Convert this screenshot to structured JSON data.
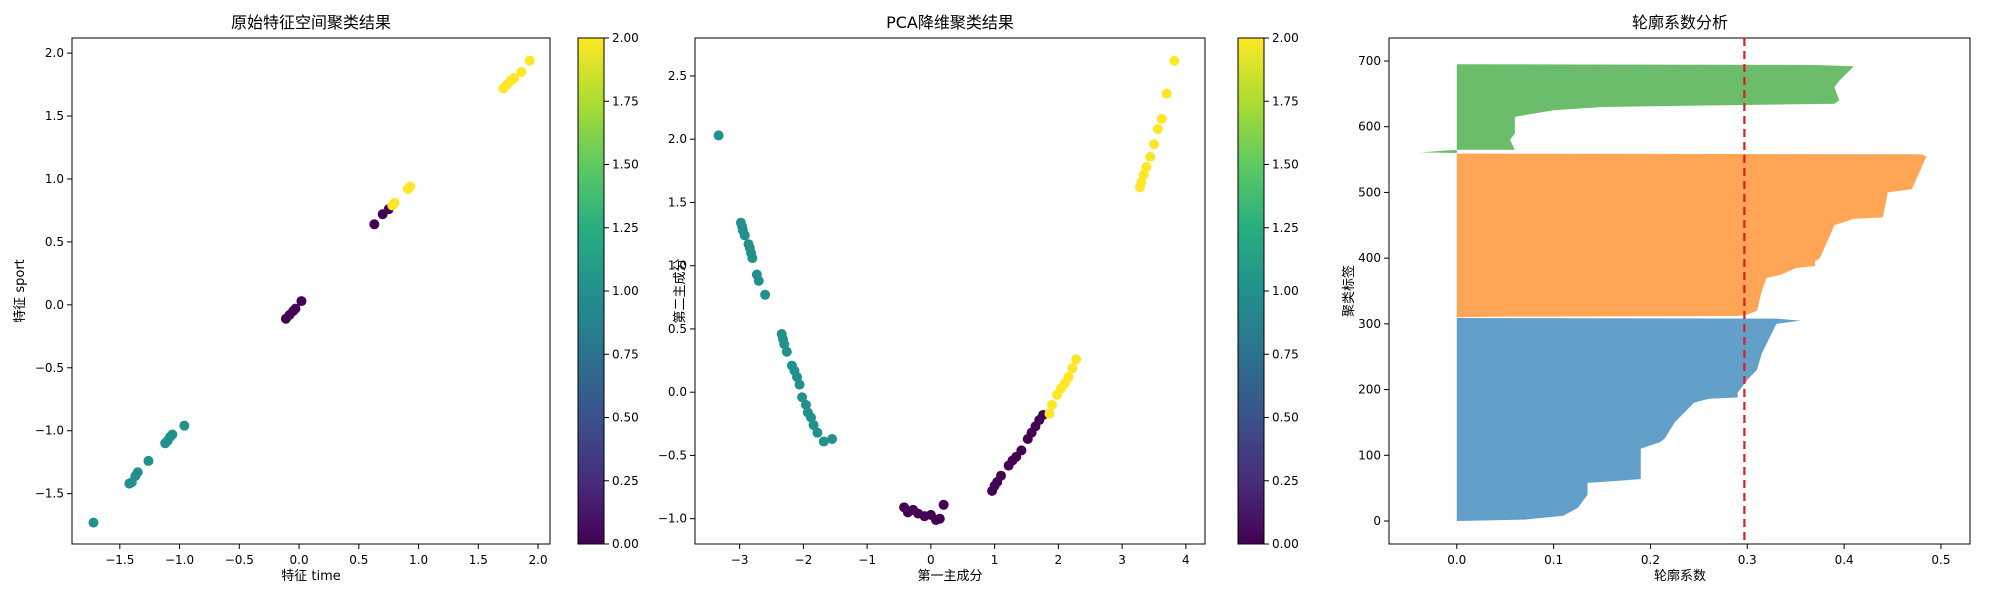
{
  "chart_data": [
    {
      "type": "scatter",
      "title": "原始特征空间聚类结果",
      "xlabel": "特征 time",
      "ylabel": "特征 sport",
      "xlim": [
        -1.9,
        2.1
      ],
      "ylim": [
        -1.9,
        2.12
      ],
      "x_ticks": [
        -1.5,
        -1.0,
        -0.5,
        0.0,
        0.5,
        1.0,
        1.5,
        2.0
      ],
      "x_tick_labels": [
        "−1.5",
        "−1.0",
        "−0.5",
        "0.0",
        "0.5",
        "1.0",
        "1.5",
        "2.0"
      ],
      "y_ticks": [
        -1.5,
        -1.0,
        -0.5,
        0.0,
        0.5,
        1.0,
        1.5,
        2.0
      ],
      "y_tick_labels": [
        "−1.5",
        "−1.0",
        "−0.5",
        "0.0",
        "0.5",
        "1.0",
        "1.5",
        "2.0"
      ],
      "colormap": "viridis",
      "color_value_range": [
        0,
        2
      ],
      "grid": false,
      "points": [
        {
          "x": -1.72,
          "y": -1.73,
          "c": 1
        },
        {
          "x": -1.42,
          "y": -1.42,
          "c": 1
        },
        {
          "x": -1.4,
          "y": -1.41,
          "c": 1
        },
        {
          "x": -1.37,
          "y": -1.36,
          "c": 1
        },
        {
          "x": -1.35,
          "y": -1.33,
          "c": 1
        },
        {
          "x": -1.26,
          "y": -1.24,
          "c": 1
        },
        {
          "x": -1.12,
          "y": -1.1,
          "c": 1
        },
        {
          "x": -1.1,
          "y": -1.08,
          "c": 1
        },
        {
          "x": -1.08,
          "y": -1.05,
          "c": 1
        },
        {
          "x": -1.06,
          "y": -1.03,
          "c": 1
        },
        {
          "x": -0.96,
          "y": -0.96,
          "c": 1
        },
        {
          "x": -0.11,
          "y": -0.11,
          "c": 0
        },
        {
          "x": -0.08,
          "y": -0.08,
          "c": 0
        },
        {
          "x": -0.05,
          "y": -0.05,
          "c": 0
        },
        {
          "x": -0.03,
          "y": -0.03,
          "c": 0
        },
        {
          "x": 0.02,
          "y": 0.03,
          "c": 0
        },
        {
          "x": 0.63,
          "y": 0.64,
          "c": 0
        },
        {
          "x": 0.7,
          "y": 0.72,
          "c": 0
        },
        {
          "x": 0.75,
          "y": 0.76,
          "c": 0
        },
        {
          "x": 0.78,
          "y": 0.79,
          "c": 2
        },
        {
          "x": 0.8,
          "y": 0.81,
          "c": 2
        },
        {
          "x": 0.91,
          "y": 0.92,
          "c": 2
        },
        {
          "x": 0.93,
          "y": 0.94,
          "c": 2
        },
        {
          "x": 1.71,
          "y": 1.72,
          "c": 2
        },
        {
          "x": 1.74,
          "y": 1.75,
          "c": 2
        },
        {
          "x": 1.77,
          "y": 1.78,
          "c": 2
        },
        {
          "x": 1.8,
          "y": 1.8,
          "c": 2
        },
        {
          "x": 1.86,
          "y": 1.85,
          "c": 2
        },
        {
          "x": 1.93,
          "y": 1.94,
          "c": 2
        }
      ],
      "colorbar_ticks": [
        "0.00",
        "0.25",
        "0.50",
        "0.75",
        "1.00",
        "1.25",
        "1.50",
        "1.75",
        "2.00"
      ]
    },
    {
      "type": "scatter",
      "title": "PCA降维聚类结果",
      "xlabel": "第一主成分",
      "ylabel": "第二主成分",
      "xlim": [
        -3.7,
        4.3
      ],
      "ylim": [
        -1.2,
        2.8
      ],
      "x_ticks": [
        -3,
        -2,
        -1,
        0,
        1,
        2,
        3,
        4
      ],
      "x_tick_labels": [
        "−3",
        "−2",
        "−1",
        "0",
        "1",
        "2",
        "3",
        "4"
      ],
      "y_ticks": [
        -1.0,
        -0.5,
        0.0,
        0.5,
        1.0,
        1.5,
        2.0,
        2.5
      ],
      "y_tick_labels": [
        "−1.0",
        "−0.5",
        "0.0",
        "0.5",
        "1.0",
        "1.5",
        "2.0",
        "2.5"
      ],
      "colormap": "viridis",
      "color_value_range": [
        0,
        2
      ],
      "grid": false,
      "points": [
        {
          "x": -3.33,
          "y": 2.03,
          "c": 1
        },
        {
          "x": -2.98,
          "y": 1.34,
          "c": 1
        },
        {
          "x": -2.96,
          "y": 1.31,
          "c": 1
        },
        {
          "x": -2.95,
          "y": 1.28,
          "c": 1
        },
        {
          "x": -2.92,
          "y": 1.24,
          "c": 1
        },
        {
          "x": -2.86,
          "y": 1.17,
          "c": 1
        },
        {
          "x": -2.84,
          "y": 1.14,
          "c": 1
        },
        {
          "x": -2.82,
          "y": 1.1,
          "c": 1
        },
        {
          "x": -2.8,
          "y": 1.06,
          "c": 1
        },
        {
          "x": -2.73,
          "y": 0.93,
          "c": 1
        },
        {
          "x": -2.7,
          "y": 0.88,
          "c": 1
        },
        {
          "x": -2.6,
          "y": 0.77,
          "c": 1
        },
        {
          "x": -2.34,
          "y": 0.46,
          "c": 1
        },
        {
          "x": -2.32,
          "y": 0.42,
          "c": 1
        },
        {
          "x": -2.3,
          "y": 0.38,
          "c": 1
        },
        {
          "x": -2.26,
          "y": 0.32,
          "c": 1
        },
        {
          "x": -2.18,
          "y": 0.21,
          "c": 1
        },
        {
          "x": -2.14,
          "y": 0.17,
          "c": 1
        },
        {
          "x": -2.1,
          "y": 0.12,
          "c": 1
        },
        {
          "x": -2.06,
          "y": 0.06,
          "c": 1
        },
        {
          "x": -2.02,
          "y": -0.04,
          "c": 1
        },
        {
          "x": -1.96,
          "y": -0.1,
          "c": 1
        },
        {
          "x": -1.93,
          "y": -0.16,
          "c": 1
        },
        {
          "x": -1.88,
          "y": -0.2,
          "c": 1
        },
        {
          "x": -1.84,
          "y": -0.26,
          "c": 1
        },
        {
          "x": -1.78,
          "y": -0.32,
          "c": 1
        },
        {
          "x": -1.68,
          "y": -0.39,
          "c": 1
        },
        {
          "x": -1.55,
          "y": -0.37,
          "c": 1
        },
        {
          "x": -0.42,
          "y": -0.91,
          "c": 0
        },
        {
          "x": -0.36,
          "y": -0.95,
          "c": 0
        },
        {
          "x": -0.28,
          "y": -0.93,
          "c": 0
        },
        {
          "x": -0.2,
          "y": -0.96,
          "c": 0
        },
        {
          "x": -0.1,
          "y": -0.98,
          "c": 0
        },
        {
          "x": 0.0,
          "y": -0.97,
          "c": 0
        },
        {
          "x": 0.08,
          "y": -1.01,
          "c": 0
        },
        {
          "x": 0.14,
          "y": -1.0,
          "c": 0
        },
        {
          "x": 0.2,
          "y": -0.89,
          "c": 0
        },
        {
          "x": 0.96,
          "y": -0.78,
          "c": 0
        },
        {
          "x": 1.0,
          "y": -0.74,
          "c": 0
        },
        {
          "x": 1.04,
          "y": -0.71,
          "c": 0
        },
        {
          "x": 1.1,
          "y": -0.66,
          "c": 0
        },
        {
          "x": 1.22,
          "y": -0.58,
          "c": 0
        },
        {
          "x": 1.28,
          "y": -0.54,
          "c": 0
        },
        {
          "x": 1.34,
          "y": -0.51,
          "c": 0
        },
        {
          "x": 1.42,
          "y": -0.46,
          "c": 0
        },
        {
          "x": 1.52,
          "y": -0.37,
          "c": 0
        },
        {
          "x": 1.58,
          "y": -0.32,
          "c": 0
        },
        {
          "x": 1.64,
          "y": -0.27,
          "c": 0
        },
        {
          "x": 1.7,
          "y": -0.22,
          "c": 0
        },
        {
          "x": 1.76,
          "y": -0.18,
          "c": 0
        },
        {
          "x": 1.86,
          "y": -0.17,
          "c": 2
        },
        {
          "x": 1.9,
          "y": -0.1,
          "c": 2
        },
        {
          "x": 1.98,
          "y": -0.02,
          "c": 2
        },
        {
          "x": 2.04,
          "y": 0.03,
          "c": 2
        },
        {
          "x": 2.1,
          "y": 0.07,
          "c": 2
        },
        {
          "x": 2.16,
          "y": 0.12,
          "c": 2
        },
        {
          "x": 2.22,
          "y": 0.19,
          "c": 2
        },
        {
          "x": 2.28,
          "y": 0.26,
          "c": 2
        },
        {
          "x": 3.28,
          "y": 1.62,
          "c": 2
        },
        {
          "x": 3.3,
          "y": 1.66,
          "c": 2
        },
        {
          "x": 3.34,
          "y": 1.72,
          "c": 2
        },
        {
          "x": 3.38,
          "y": 1.78,
          "c": 2
        },
        {
          "x": 3.44,
          "y": 1.86,
          "c": 2
        },
        {
          "x": 3.5,
          "y": 1.96,
          "c": 2
        },
        {
          "x": 3.56,
          "y": 2.08,
          "c": 2
        },
        {
          "x": 3.62,
          "y": 2.16,
          "c": 2
        },
        {
          "x": 3.7,
          "y": 2.36,
          "c": 2
        },
        {
          "x": 3.82,
          "y": 2.62,
          "c": 2
        }
      ],
      "colorbar_ticks": [
        "0.00",
        "0.25",
        "0.50",
        "0.75",
        "1.00",
        "1.25",
        "1.50",
        "1.75",
        "2.00"
      ]
    },
    {
      "type": "area",
      "subtype": "silhouette",
      "title": "轮廓系数分析",
      "xlabel": "轮廓系数",
      "ylabel": "聚类标签",
      "xlim": [
        -0.07,
        0.53
      ],
      "ylim": [
        -35,
        735
      ],
      "x_ticks": [
        0.0,
        0.1,
        0.2,
        0.3,
        0.4,
        0.5
      ],
      "x_tick_labels": [
        "0.0",
        "0.1",
        "0.2",
        "0.3",
        "0.4",
        "0.5"
      ],
      "y_ticks": [
        0,
        100,
        200,
        300,
        400,
        500,
        600,
        700
      ],
      "y_tick_labels": [
        "0",
        "100",
        "200",
        "300",
        "400",
        "500",
        "600",
        "700"
      ],
      "grid": false,
      "average_silhouette": 0.297,
      "series": [
        {
          "color": "#1f77b4",
          "profile": [
            [
              0,
              0.0
            ],
            [
              2,
              0.07
            ],
            [
              8,
              0.11
            ],
            [
              20,
              0.125
            ],
            [
              30,
              0.13
            ],
            [
              40,
              0.135
            ],
            [
              58,
              0.135
            ],
            [
              62,
              0.175
            ],
            [
              64,
              0.19
            ],
            [
              110,
              0.19
            ],
            [
              120,
              0.21
            ],
            [
              126,
              0.215
            ],
            [
              150,
              0.225
            ],
            [
              180,
              0.245
            ],
            [
              186,
              0.26
            ],
            [
              188,
              0.29
            ],
            [
              195,
              0.29
            ],
            [
              215,
              0.3
            ],
            [
              230,
              0.31
            ],
            [
              255,
              0.315
            ],
            [
              270,
              0.32
            ],
            [
              300,
              0.33
            ],
            [
              305,
              0.355
            ],
            [
              308,
              0.33
            ],
            [
              309,
              0.0
            ]
          ]
        },
        {
          "color": "#ff7f0e",
          "profile": [
            [
              310,
              0.0
            ],
            [
              311,
              0.05
            ],
            [
              312,
              0.29
            ],
            [
              314,
              0.3
            ],
            [
              320,
              0.31
            ],
            [
              350,
              0.315
            ],
            [
              370,
              0.32
            ],
            [
              375,
              0.335
            ],
            [
              385,
              0.35
            ],
            [
              388,
              0.37
            ],
            [
              395,
              0.37
            ],
            [
              400,
              0.375
            ],
            [
              450,
              0.39
            ],
            [
              460,
              0.41
            ],
            [
              462,
              0.44
            ],
            [
              500,
              0.445
            ],
            [
              505,
              0.47
            ],
            [
              555,
              0.485
            ],
            [
              558,
              0.48
            ],
            [
              559,
              0.0
            ]
          ]
        },
        {
          "color": "#2ca02c",
          "profile": [
            [
              560,
              0.0
            ],
            [
              561,
              -0.037
            ],
            [
              565,
              0.0
            ],
            [
              565,
              0.06
            ],
            [
              580,
              0.055
            ],
            [
              590,
              0.06
            ],
            [
              615,
              0.06
            ],
            [
              625,
              0.1
            ],
            [
              630,
              0.15
            ],
            [
              635,
              0.39
            ],
            [
              640,
              0.395
            ],
            [
              660,
              0.39
            ],
            [
              670,
              0.395
            ],
            [
              692,
              0.41
            ],
            [
              694,
              0.37
            ],
            [
              695,
              0.0
            ]
          ]
        }
      ]
    }
  ]
}
